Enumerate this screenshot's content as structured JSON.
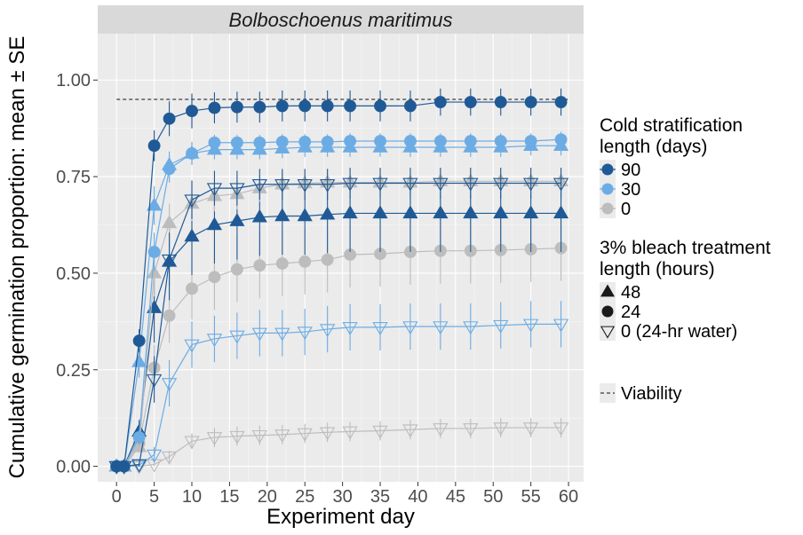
{
  "chart_data": {
    "type": "line",
    "title": "Bolboschoenus maritimus",
    "xlabel": "Experiment day",
    "ylabel": "Cumulative germination proportion: mean ± SE",
    "xlim": [
      -2.5,
      62
    ],
    "ylim": [
      -0.04,
      1.12
    ],
    "xticks": [
      0,
      5,
      10,
      15,
      20,
      25,
      30,
      35,
      40,
      45,
      50,
      55,
      60
    ],
    "yticks": [
      0.0,
      0.25,
      0.5,
      0.75,
      1.0
    ],
    "ytick_labels": [
      "0.00",
      "0.25",
      "0.50",
      "0.75",
      "1.00"
    ],
    "viability": {
      "value": 0.95,
      "x_range": [
        0,
        60
      ]
    },
    "colors": {
      "90": "#1f5a96",
      "30": "#6cace4",
      "0": "#bdbdbd",
      "panel": "#ebebeb",
      "strip": "#d9d9d9"
    },
    "legend": {
      "cold_title": [
        "Cold stratification",
        "length (days)"
      ],
      "cold_items": [
        {
          "label": "90",
          "color": "#1f5a96"
        },
        {
          "label": "30",
          "color": "#6cace4"
        },
        {
          "label": "0",
          "color": "#bdbdbd"
        }
      ],
      "bleach_title": [
        "3% bleach treatment",
        "length (hours)"
      ],
      "bleach_items": [
        {
          "label": "48",
          "shape": "triangle"
        },
        {
          "label": "24",
          "shape": "circle"
        },
        {
          "label": "0 (24-hr water)",
          "shape": "triangle-down"
        }
      ],
      "viability_label": "Viability"
    },
    "x": [
      0,
      1,
      3,
      5,
      7,
      10,
      13,
      16,
      19,
      22,
      25,
      28,
      31,
      35,
      39,
      43,
      47,
      51,
      55,
      59
    ],
    "series": [
      {
        "name": "90 days / 24 h",
        "cold": "90",
        "shape": "circle",
        "values": [
          0,
          0,
          0.325,
          0.83,
          0.9,
          0.92,
          0.928,
          0.93,
          0.93,
          0.933,
          0.933,
          0.933,
          0.933,
          0.933,
          0.933,
          0.943,
          0.943,
          0.943,
          0.943,
          0.943
        ],
        "se": [
          0,
          0,
          0.03,
          0.04,
          0.045,
          0.045,
          0.04,
          0.04,
          0.04,
          0.04,
          0.04,
          0.04,
          0.04,
          0.04,
          0.04,
          0.035,
          0.035,
          0.035,
          0.035,
          0.035
        ]
      },
      {
        "name": "30 days / 24 h",
        "cold": "30",
        "shape": "circle",
        "values": [
          0,
          0,
          0.075,
          0.555,
          0.77,
          0.81,
          0.838,
          0.838,
          0.838,
          0.84,
          0.84,
          0.84,
          0.842,
          0.842,
          0.842,
          0.842,
          0.842,
          0.842,
          0.842,
          0.846
        ],
        "se": [
          0,
          0,
          0.02,
          0.05,
          0.035,
          0.025,
          0.02,
          0.02,
          0.02,
          0.02,
          0.02,
          0.02,
          0.02,
          0.02,
          0.02,
          0.02,
          0.02,
          0.02,
          0.02,
          0.02
        ]
      },
      {
        "name": "30 days / 48 h",
        "cold": "30",
        "shape": "triangle",
        "values": [
          0,
          0,
          0.27,
          0.675,
          0.78,
          0.81,
          0.82,
          0.82,
          0.82,
          0.823,
          0.826,
          0.826,
          0.826,
          0.826,
          0.826,
          0.826,
          0.826,
          0.826,
          0.83,
          0.83
        ],
        "se": [
          0,
          0,
          0.04,
          0.05,
          0.035,
          0.03,
          0.025,
          0.025,
          0.025,
          0.025,
          0.025,
          0.025,
          0.025,
          0.025,
          0.025,
          0.025,
          0.025,
          0.025,
          0.025,
          0.025
        ]
      },
      {
        "name": "90 days / 0 h (24-hr water)",
        "cold": "90",
        "shape": "triangle-down",
        "values": [
          0,
          0,
          0.005,
          0.225,
          0.535,
          0.69,
          0.72,
          0.72,
          0.73,
          0.73,
          0.73,
          0.73,
          0.733,
          0.733,
          0.733,
          0.733,
          0.733,
          0.733,
          0.733,
          0.733
        ],
        "se": [
          0,
          0,
          0.005,
          0.06,
          0.07,
          0.05,
          0.045,
          0.045,
          0.04,
          0.04,
          0.04,
          0.04,
          0.04,
          0.04,
          0.04,
          0.04,
          0.04,
          0.04,
          0.04,
          0.04
        ]
      },
      {
        "name": "0 days / 48 h",
        "cold": "0",
        "shape": "triangle",
        "values": [
          0,
          0,
          0.05,
          0.5,
          0.63,
          0.68,
          0.7,
          0.705,
          0.72,
          0.73,
          0.733,
          0.735,
          0.735,
          0.735,
          0.735,
          0.738,
          0.738,
          0.738,
          0.738,
          0.738
        ],
        "se": [
          0,
          0,
          0.015,
          0.06,
          0.05,
          0.045,
          0.04,
          0.04,
          0.035,
          0.035,
          0.035,
          0.035,
          0.035,
          0.035,
          0.035,
          0.035,
          0.035,
          0.035,
          0.035,
          0.035
        ]
      },
      {
        "name": "90 days / 48 h",
        "cold": "90",
        "shape": "triangle",
        "values": [
          0,
          0,
          0.09,
          0.41,
          0.53,
          0.595,
          0.625,
          0.635,
          0.645,
          0.648,
          0.648,
          0.652,
          0.655,
          0.655,
          0.655,
          0.655,
          0.655,
          0.655,
          0.655,
          0.655
        ],
        "se": [
          0,
          0,
          0.03,
          0.09,
          0.1,
          0.1,
          0.1,
          0.1,
          0.1,
          0.1,
          0.1,
          0.1,
          0.1,
          0.1,
          0.1,
          0.1,
          0.1,
          0.1,
          0.1,
          0.1
        ]
      },
      {
        "name": "0 days / 24 h",
        "cold": "0",
        "shape": "circle",
        "values": [
          0,
          0,
          0.06,
          0.255,
          0.39,
          0.46,
          0.49,
          0.51,
          0.52,
          0.525,
          0.53,
          0.535,
          0.548,
          0.55,
          0.555,
          0.558,
          0.558,
          0.56,
          0.562,
          0.565
        ],
        "se": [
          0,
          0,
          0.02,
          0.06,
          0.07,
          0.08,
          0.085,
          0.085,
          0.085,
          0.085,
          0.085,
          0.085,
          0.085,
          0.085,
          0.085,
          0.085,
          0.085,
          0.085,
          0.085,
          0.085
        ]
      },
      {
        "name": "30 days / 0 h (24-hr water)",
        "cold": "30",
        "shape": "triangle-down",
        "values": [
          0,
          0,
          0.003,
          0.03,
          0.215,
          0.315,
          0.33,
          0.338,
          0.345,
          0.345,
          0.348,
          0.355,
          0.36,
          0.36,
          0.362,
          0.362,
          0.362,
          0.365,
          0.368,
          0.368
        ],
        "se": [
          0,
          0,
          0.003,
          0.02,
          0.06,
          0.06,
          0.06,
          0.06,
          0.06,
          0.06,
          0.06,
          0.06,
          0.06,
          0.06,
          0.06,
          0.06,
          0.06,
          0.06,
          0.06,
          0.06
        ]
      },
      {
        "name": "0 days / 0 h (24-hr water)",
        "cold": "0",
        "shape": "triangle-down",
        "values": [
          0,
          0,
          0,
          0.005,
          0.025,
          0.065,
          0.075,
          0.078,
          0.08,
          0.082,
          0.085,
          0.088,
          0.09,
          0.092,
          0.095,
          0.098,
          0.098,
          0.1,
          0.1,
          0.1
        ],
        "se": [
          0,
          0,
          0,
          0.005,
          0.015,
          0.02,
          0.025,
          0.025,
          0.025,
          0.025,
          0.025,
          0.025,
          0.025,
          0.025,
          0.025,
          0.025,
          0.025,
          0.025,
          0.025,
          0.025
        ]
      }
    ]
  }
}
